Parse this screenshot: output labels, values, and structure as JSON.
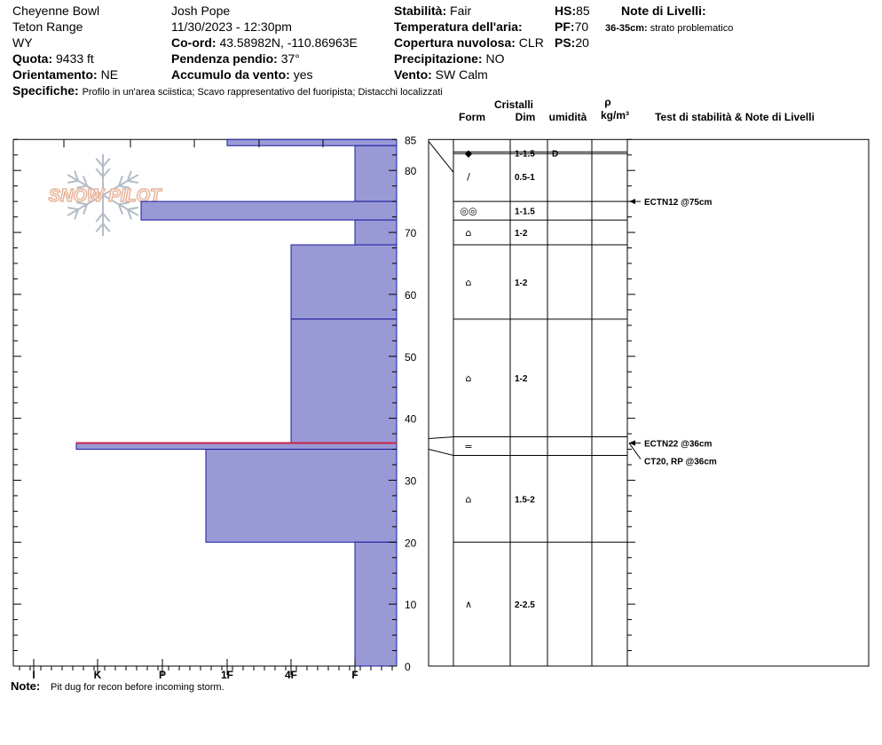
{
  "header": {
    "location": "Cheyenne Bowl",
    "range": "Teton Range",
    "state": "WY",
    "elevation_label": "Quota:",
    "elevation_value": "9433 ft",
    "aspect_label": "Orientamento:",
    "aspect_value": "NE",
    "observer": "Josh Pope",
    "datetime": "11/30/2023 - 12:30pm",
    "coord_label": "Co-ord:",
    "coord_value": "43.58982N, -110.86963E",
    "slope_label": "Pendenza pendio:",
    "slope_value": "37°",
    "wind_loading_label": "Accumulo da vento:",
    "wind_loading_value": "yes",
    "stability_label": "Stabilità:",
    "stability_value": "Fair",
    "air_temp_label": "Temperatura dell'aria:",
    "sky_label": "Copertura nuvolosa:",
    "sky_value": "CLR",
    "precip_label": "Precipitazione:",
    "precip_value": "NO",
    "wind_label": "Vento:",
    "wind_value": "SW Calm",
    "hs_label": "HS:",
    "hs_value": "85",
    "pf_label": "PF:",
    "pf_value": "70",
    "ps_label": "PS:",
    "ps_value": "20",
    "layer_notes_title": "Note di Livelli:",
    "layer_note_depth": "36-35cm:",
    "layer_note_text": "strato problematico",
    "specifics_label": "Specifiche:",
    "specifics_text": "Profilo in un'area sciistica; Scavo rappresentativo del fuoripista; Distacchi localizzati"
  },
  "footer": {
    "note_label": "Note:",
    "note_text": "Pit dug for recon before incoming storm."
  },
  "logo": {
    "text": "SNOW PILOT",
    "color": "#e8b49a",
    "flake_color": "#b4bcc8"
  },
  "chart_data": {
    "type": "bar",
    "title": "",
    "y_range": [
      0,
      85
    ],
    "y_ticks": [
      0,
      10,
      20,
      30,
      40,
      50,
      60,
      70,
      80,
      85
    ],
    "hardness_scale": [
      "I",
      "K",
      "P",
      "1F",
      "4F",
      "F"
    ],
    "columns": {
      "crystals_title": "Cristalli",
      "form": "Form",
      "size": "Dim",
      "moisture": "umidità",
      "density_symbol": "ρ",
      "density_unit": "kg/m³",
      "tests_title": "Test di stabilità & Note di Livelli"
    },
    "fill_color": "#9999d6",
    "edge_color": "#1a1aa0",
    "weak_layer_color": "#cc2244",
    "layers": [
      {
        "top": 85,
        "bottom": 84,
        "hardness": "1F"
      },
      {
        "top": 84,
        "bottom": 75,
        "hardness": "F"
      },
      {
        "top": 75,
        "bottom": 72,
        "hardness": "P+"
      },
      {
        "top": 72,
        "bottom": 68,
        "hardness": "F"
      },
      {
        "top": 68,
        "bottom": 56,
        "hardness": "4F"
      },
      {
        "top": 56,
        "bottom": 36,
        "hardness": "4F"
      },
      {
        "top": 36,
        "bottom": 35,
        "hardness": "K+"
      },
      {
        "top": 35,
        "bottom": 20,
        "hardness": "1F+"
      },
      {
        "top": 20,
        "bottom": 0,
        "hardness": "F"
      }
    ],
    "crystal_rows": [
      {
        "top": 85,
        "bottom": 83,
        "form": "◆",
        "size": "1-1.5",
        "moisture": "D"
      },
      {
        "top": 83,
        "bottom": 75,
        "form": "/",
        "size": "0.5-1",
        "moisture": ""
      },
      {
        "top": 75,
        "bottom": 72,
        "form": "◎◎",
        "size": "1-1.5",
        "moisture": ""
      },
      {
        "top": 72,
        "bottom": 68,
        "form": "⌂",
        "size": "1-2",
        "moisture": ""
      },
      {
        "top": 68,
        "bottom": 56,
        "form": "⌂",
        "size": "1-2",
        "moisture": ""
      },
      {
        "top": 56,
        "bottom": 37,
        "form": "⌂",
        "size": "1-2",
        "moisture": ""
      },
      {
        "top": 37,
        "bottom": 34,
        "form": "=",
        "size": "",
        "moisture": ""
      },
      {
        "top": 34,
        "bottom": 20,
        "form": "⌂",
        "size": "1.5-2",
        "moisture": ""
      },
      {
        "top": 20,
        "bottom": 0,
        "form": "∧",
        "size": "2-2.5",
        "moisture": ""
      }
    ],
    "stability_tests": [
      {
        "depth": 75,
        "label": "ECTN12 @75cm"
      },
      {
        "depth": 36,
        "label": "ECTN22 @36cm"
      },
      {
        "depth": 36,
        "label": "CT20, RP @36cm"
      }
    ]
  }
}
